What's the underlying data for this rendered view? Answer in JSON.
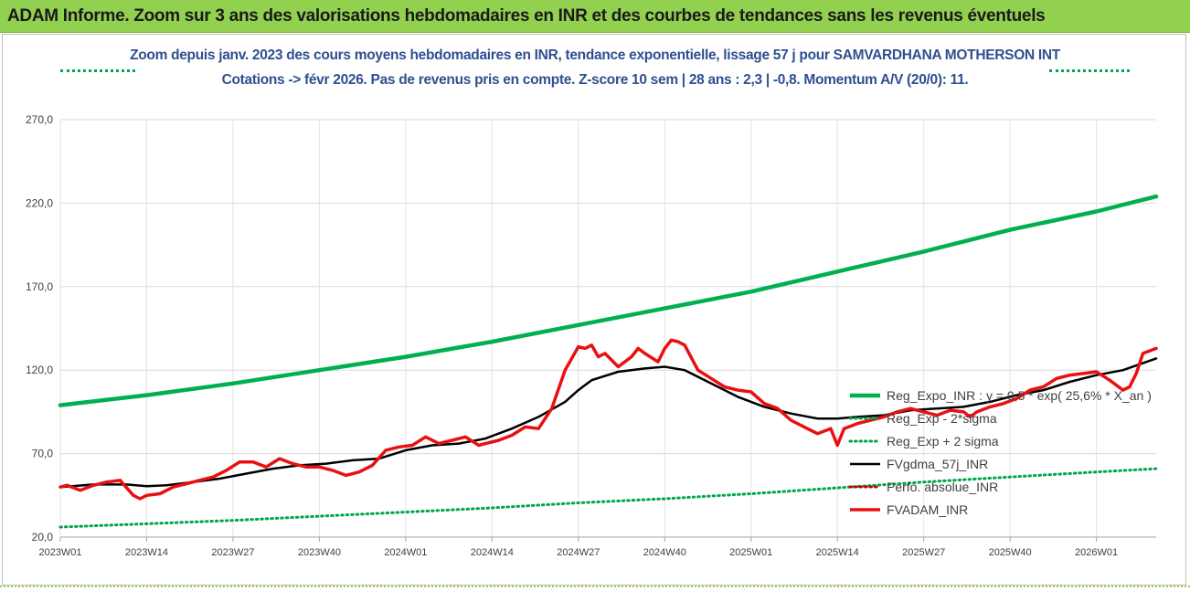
{
  "banner": {
    "title": "ADAM Informe. Zoom sur 3 ans des valorisations hebdomadaires en INR et des courbes de tendances sans les revenus éventuels"
  },
  "colors": {
    "banner_bg": "#92d050",
    "reg_exp": "#00b050",
    "sigma": "#00a64f",
    "fvgdma": "#000000",
    "perfo": "#c00000",
    "fvadam": "#e81010"
  },
  "chart_data": {
    "type": "line",
    "title": "Zoom depuis janv. 2023 des cours moyens hebdomadaires en INR, tendance exponentielle, lissage 57 j pour SAMVARDHANA MOTHERSON INT",
    "subtitle": "Cotations -> févr 2026. Pas de revenus pris en compte. Z-score 10 sem | 28 ans : 2,3 | -0,8. Momentum A/V (20/0): 11.",
    "ylim": [
      20,
      270
    ],
    "yticks": [
      "270,0",
      "220,0",
      "170,0",
      "120,0",
      "70,0",
      "20,0"
    ],
    "ytick_values": [
      270,
      220,
      170,
      120,
      70,
      20
    ],
    "xlim": [
      0,
      165
    ],
    "xticks": [
      "2023W01",
      "2023W14",
      "2023W27",
      "2023W40",
      "2024W01",
      "2024W14",
      "2024W27",
      "2024W40",
      "2025W01",
      "2025W14",
      "2025W27",
      "2025W40",
      "2026W01"
    ],
    "xtick_values": [
      0,
      13,
      26,
      39,
      52,
      65,
      78,
      91,
      104,
      117,
      130,
      143,
      156
    ],
    "grid": "horizontal+vertical",
    "legend_position": "right",
    "series": [
      {
        "name": "Reg_Expo_INR : y = 0,5 * exp( 25,6% * X_an )",
        "style": "solid-thick",
        "color": "#00b050",
        "x": [
          0,
          13,
          26,
          39,
          52,
          65,
          78,
          91,
          104,
          117,
          130,
          143,
          156,
          165
        ],
        "y": [
          99,
          105,
          112,
          120,
          128,
          137,
          147,
          157,
          167,
          179,
          191,
          204,
          215,
          224
        ]
      },
      {
        "name": "Reg_Exp - 2*sigma",
        "style": "dotted",
        "color": "#00a64f",
        "x": [
          0,
          13,
          26,
          39,
          52,
          65,
          78,
          91,
          104,
          117,
          130,
          143,
          156,
          165
        ],
        "y": [
          26,
          28,
          30,
          32.5,
          35,
          37.5,
          40.5,
          43,
          46,
          49.5,
          53,
          56,
          59,
          61
        ]
      },
      {
        "name": "Reg_Exp + 2 sigma",
        "style": "dotted",
        "color": "#00a64f",
        "x": [],
        "y": []
      },
      {
        "name": "FVgdma_57j_INR",
        "style": "solid",
        "color": "#000000",
        "x": [
          0,
          5,
          10,
          13,
          16,
          20,
          24,
          28,
          32,
          36,
          40,
          44,
          48,
          52,
          56,
          60,
          64,
          68,
          72,
          76,
          78,
          80,
          84,
          88,
          91,
          94,
          98,
          102,
          106,
          110,
          114,
          117,
          120,
          124,
          128,
          132,
          136,
          140,
          144,
          148,
          152,
          156,
          160,
          165
        ],
        "y": [
          50,
          51.5,
          51.5,
          50.5,
          51,
          53,
          55,
          58,
          61,
          63,
          64,
          66,
          67,
          72,
          75,
          76,
          79,
          85,
          92,
          101,
          108,
          114,
          119,
          121,
          122,
          120,
          112,
          104,
          98,
          94,
          91,
          91,
          92,
          93,
          96,
          97,
          98,
          101,
          105,
          108,
          113,
          117,
          120,
          127
        ]
      },
      {
        "name": "Perfo. absolue_INR",
        "style": "dotted",
        "color": "#c00000",
        "x": [],
        "y": []
      },
      {
        "name": "FVADAM_INR",
        "style": "solid-thick",
        "color": "#e81010",
        "x": [
          0,
          1,
          3,
          5,
          7,
          9,
          11,
          12,
          13,
          15,
          17,
          19,
          21,
          23,
          25,
          27,
          29,
          31,
          33,
          35,
          37,
          39,
          41,
          43,
          45,
          47,
          49,
          51,
          53,
          55,
          57,
          59,
          61,
          63,
          64,
          66,
          68,
          70,
          72,
          74,
          76,
          78,
          79,
          80,
          81,
          82,
          84,
          86,
          87,
          88,
          90,
          91,
          92,
          93,
          94,
          96,
          98,
          100,
          102,
          104,
          106,
          108,
          110,
          112,
          114,
          116,
          117,
          118,
          120,
          122,
          124,
          126,
          128,
          130,
          132,
          134,
          136,
          137,
          138,
          140,
          142,
          144,
          146,
          148,
          150,
          152,
          154,
          156,
          158,
          160,
          161,
          162,
          163,
          165
        ],
        "y": [
          50,
          51,
          48,
          51,
          53,
          54,
          45,
          43,
          45,
          46,
          50,
          52,
          54,
          56,
          60,
          65,
          65,
          62,
          67,
          64,
          62,
          62,
          60,
          57,
          59,
          63,
          72,
          74,
          75,
          80,
          76,
          78,
          80,
          75,
          76,
          78,
          81,
          86,
          85,
          97,
          120,
          134,
          133,
          135,
          128,
          130,
          122,
          128,
          133,
          130,
          125,
          133,
          138,
          137,
          135,
          120,
          115,
          110,
          108,
          107,
          100,
          97,
          90,
          86,
          82,
          85,
          75,
          85,
          88,
          90,
          92,
          95,
          97,
          95,
          93,
          96,
          95,
          92,
          95,
          98,
          100,
          103,
          108,
          110,
          115,
          117,
          118,
          119,
          114,
          108,
          110,
          118,
          130,
          133
        ]
      }
    ]
  }
}
